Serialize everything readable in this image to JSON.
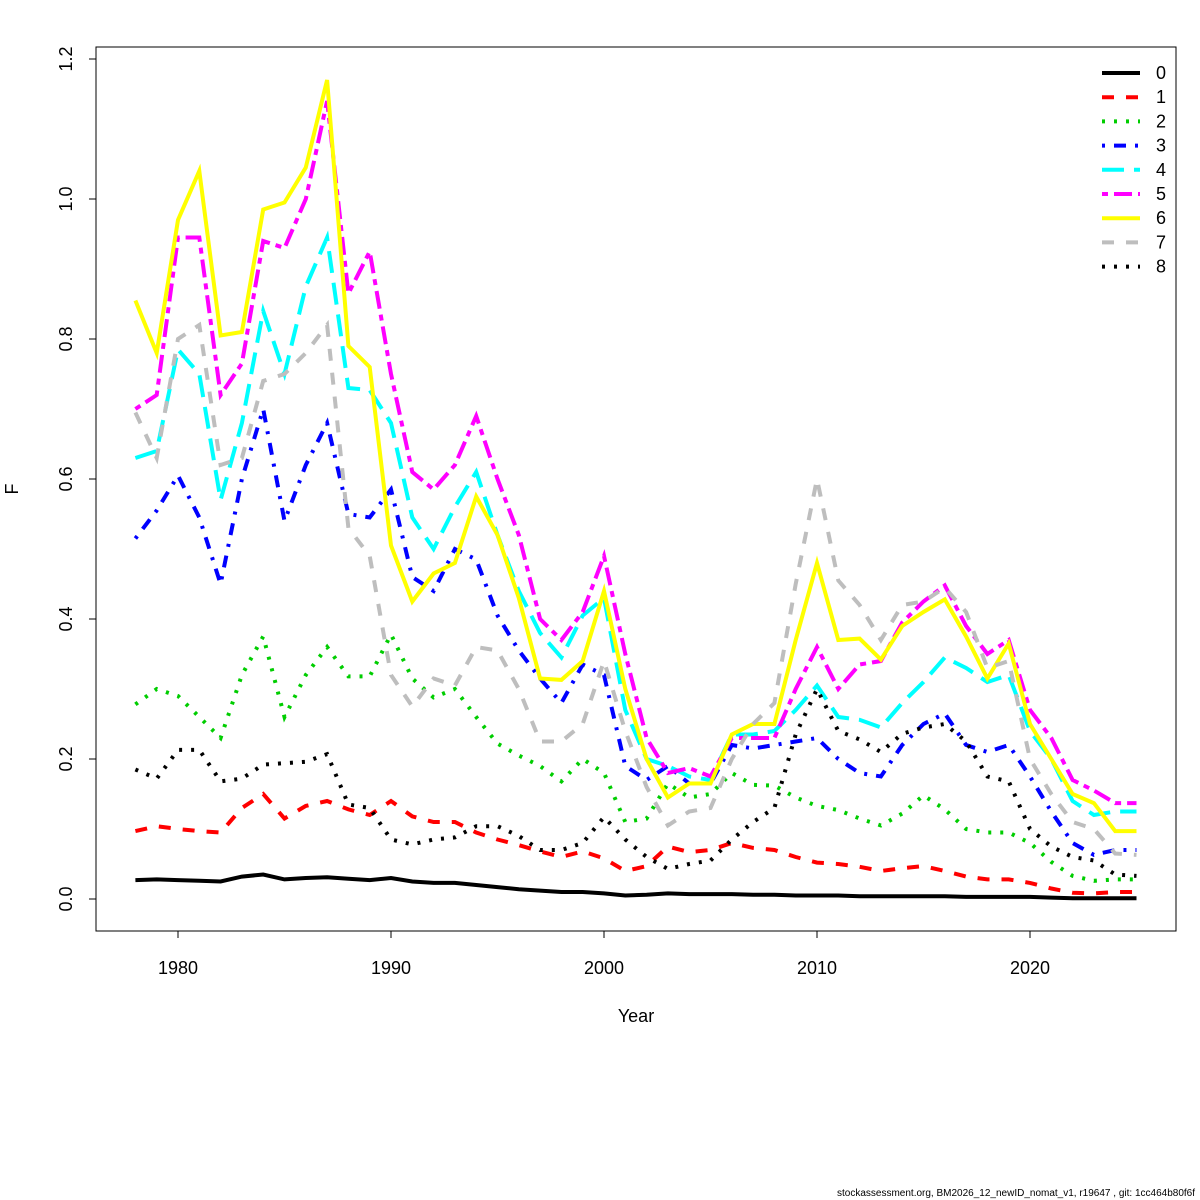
{
  "chart_data": {
    "type": "line",
    "xlabel": "Year",
    "ylabel": "F",
    "xlim": [
      1976,
      2026.5
    ],
    "ylim": [
      -0.045,
      1.26
    ],
    "xticks": [
      1980,
      1990,
      2000,
      2010,
      2020
    ],
    "yticks": [
      0.0,
      0.2,
      0.4,
      0.6,
      0.8,
      1.0,
      1.2
    ],
    "ytick_labels": [
      "0.0",
      "0.2",
      "0.4",
      "0.6",
      "0.8",
      "1.0",
      "1.2"
    ],
    "grid": false,
    "legend_position": "top-right",
    "x": [
      1978,
      1979,
      1980,
      1981,
      1982,
      1983,
      1984,
      1985,
      1986,
      1987,
      1988,
      1989,
      1990,
      1991,
      1992,
      1993,
      1994,
      1995,
      1996,
      1997,
      1998,
      1999,
      2000,
      2001,
      2002,
      2003,
      2004,
      2005,
      2006,
      2007,
      2008,
      2009,
      2010,
      2011,
      2012,
      2013,
      2014,
      2015,
      2016,
      2017,
      2018,
      2019,
      2020,
      2021,
      2022,
      2023,
      2024,
      2025
    ],
    "series": [
      {
        "name": "0",
        "color": "#000000",
        "dash": "solid",
        "values": [
          0.027,
          0.028,
          0.027,
          0.026,
          0.025,
          0.032,
          0.035,
          0.028,
          0.03,
          0.031,
          0.029,
          0.027,
          0.03,
          0.025,
          0.023,
          0.023,
          0.02,
          0.017,
          0.014,
          0.012,
          0.01,
          0.01,
          0.008,
          0.005,
          0.006,
          0.008,
          0.007,
          0.007,
          0.007,
          0.006,
          0.006,
          0.005,
          0.005,
          0.005,
          0.004,
          0.004,
          0.004,
          0.004,
          0.004,
          0.003,
          0.003,
          0.003,
          0.003,
          0.002,
          0.001,
          0.001,
          0.001,
          0.001
        ]
      },
      {
        "name": "1",
        "color": "#ff0000",
        "dash": "dashed",
        "values": [
          0.097,
          0.104,
          0.1,
          0.097,
          0.095,
          0.13,
          0.15,
          0.115,
          0.133,
          0.14,
          0.128,
          0.12,
          0.14,
          0.118,
          0.11,
          0.11,
          0.095,
          0.085,
          0.077,
          0.068,
          0.06,
          0.068,
          0.058,
          0.04,
          0.047,
          0.075,
          0.067,
          0.07,
          0.08,
          0.073,
          0.07,
          0.06,
          0.052,
          0.05,
          0.046,
          0.04,
          0.044,
          0.047,
          0.04,
          0.032,
          0.028,
          0.028,
          0.023,
          0.015,
          0.009,
          0.008,
          0.01,
          0.01
        ]
      },
      {
        "name": "2",
        "color": "#00cd00",
        "dash": "dotted",
        "values": [
          0.278,
          0.3,
          0.29,
          0.26,
          0.23,
          0.32,
          0.375,
          0.26,
          0.32,
          0.36,
          0.318,
          0.318,
          0.378,
          0.315,
          0.288,
          0.3,
          0.26,
          0.222,
          0.205,
          0.19,
          0.168,
          0.2,
          0.18,
          0.11,
          0.115,
          0.165,
          0.145,
          0.15,
          0.18,
          0.163,
          0.162,
          0.145,
          0.133,
          0.127,
          0.115,
          0.105,
          0.122,
          0.148,
          0.128,
          0.1,
          0.095,
          0.095,
          0.08,
          0.053,
          0.033,
          0.026,
          0.028,
          0.028
        ]
      },
      {
        "name": "3",
        "color": "#0000ff",
        "dash": "dotdash",
        "values": [
          0.515,
          0.555,
          0.605,
          0.545,
          0.45,
          0.6,
          0.7,
          0.54,
          0.62,
          0.68,
          0.55,
          0.545,
          0.585,
          0.46,
          0.44,
          0.5,
          0.485,
          0.405,
          0.355,
          0.315,
          0.28,
          0.335,
          0.32,
          0.19,
          0.17,
          0.19,
          0.165,
          0.165,
          0.22,
          0.215,
          0.22,
          0.225,
          0.23,
          0.2,
          0.18,
          0.175,
          0.22,
          0.25,
          0.265,
          0.22,
          0.21,
          0.22,
          0.175,
          0.125,
          0.08,
          0.063,
          0.07,
          0.07
        ]
      },
      {
        "name": "4",
        "color": "#00ffff",
        "dash": "longdash",
        "values": [
          0.63,
          0.64,
          0.785,
          0.75,
          0.57,
          0.68,
          0.84,
          0.75,
          0.875,
          0.945,
          0.73,
          0.727,
          0.68,
          0.545,
          0.5,
          0.56,
          0.61,
          0.52,
          0.44,
          0.38,
          0.345,
          0.405,
          0.43,
          0.27,
          0.2,
          0.19,
          0.175,
          0.17,
          0.235,
          0.235,
          0.24,
          0.27,
          0.305,
          0.26,
          0.256,
          0.245,
          0.28,
          0.31,
          0.345,
          0.33,
          0.31,
          0.32,
          0.24,
          0.2,
          0.14,
          0.12,
          0.125,
          0.125
        ]
      },
      {
        "name": "5",
        "color": "#ff00ff",
        "dash": "twodash",
        "values": [
          0.7,
          0.72,
          0.945,
          0.945,
          0.72,
          0.765,
          0.94,
          0.93,
          1.0,
          1.14,
          0.865,
          0.925,
          0.75,
          0.61,
          0.585,
          0.62,
          0.69,
          0.6,
          0.52,
          0.4,
          0.37,
          0.41,
          0.49,
          0.35,
          0.23,
          0.18,
          0.187,
          0.175,
          0.23,
          0.23,
          0.23,
          0.3,
          0.36,
          0.3,
          0.335,
          0.34,
          0.395,
          0.425,
          0.448,
          0.39,
          0.35,
          0.37,
          0.27,
          0.23,
          0.17,
          0.155,
          0.137,
          0.137
        ]
      },
      {
        "name": "6",
        "color": "#ffff00",
        "dash": "solid",
        "values": [
          0.855,
          0.78,
          0.97,
          1.04,
          0.805,
          0.81,
          0.985,
          0.995,
          1.045,
          1.17,
          0.79,
          0.76,
          0.505,
          0.425,
          0.465,
          0.48,
          0.575,
          0.52,
          0.43,
          0.315,
          0.313,
          0.34,
          0.44,
          0.3,
          0.2,
          0.145,
          0.165,
          0.165,
          0.235,
          0.25,
          0.25,
          0.37,
          0.48,
          0.37,
          0.372,
          0.342,
          0.39,
          0.41,
          0.428,
          0.375,
          0.315,
          0.365,
          0.25,
          0.2,
          0.15,
          0.137,
          0.097,
          0.097
        ]
      },
      {
        "name": "7",
        "color": "#bebebe",
        "dash": "dashed",
        "values": [
          0.695,
          0.63,
          0.8,
          0.82,
          0.62,
          0.63,
          0.74,
          0.75,
          0.78,
          0.82,
          0.53,
          0.49,
          0.32,
          0.275,
          0.315,
          0.305,
          0.36,
          0.355,
          0.3,
          0.225,
          0.225,
          0.25,
          0.34,
          0.24,
          0.16,
          0.105,
          0.125,
          0.13,
          0.2,
          0.25,
          0.28,
          0.45,
          0.6,
          0.455,
          0.42,
          0.37,
          0.42,
          0.425,
          0.445,
          0.41,
          0.33,
          0.34,
          0.2,
          0.15,
          0.11,
          0.1,
          0.065,
          0.063
        ]
      },
      {
        "name": "8",
        "color": "#000000",
        "dash": "dotted",
        "values": [
          0.185,
          0.172,
          0.213,
          0.213,
          0.168,
          0.172,
          0.192,
          0.194,
          0.196,
          0.207,
          0.135,
          0.13,
          0.085,
          0.078,
          0.085,
          0.088,
          0.104,
          0.104,
          0.09,
          0.07,
          0.07,
          0.08,
          0.117,
          0.085,
          0.06,
          0.043,
          0.05,
          0.055,
          0.085,
          0.11,
          0.13,
          0.235,
          0.3,
          0.24,
          0.228,
          0.21,
          0.236,
          0.245,
          0.25,
          0.225,
          0.175,
          0.168,
          0.1,
          0.075,
          0.06,
          0.055,
          0.035,
          0.033
        ]
      }
    ]
  },
  "footer": "stockassessment.org, BM2026_12_newID_nomat_v1, r19647 , git: 1cc464b80f6f"
}
